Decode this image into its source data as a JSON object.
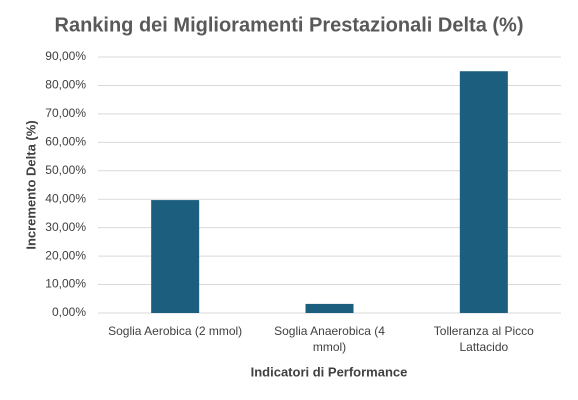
{
  "chart_data": {
    "type": "bar",
    "title": "Ranking dei Miglioramenti Prestazionali Delta (%)",
    "x_label": "Indicatori di Performance",
    "y_label": "Incremento Delta (%)",
    "categories": [
      "Soglia Aerobica (2 mmol)",
      "Soglia Anaerobica (4 mmol)",
      "Tolleranza al Picco Lattacido"
    ],
    "values": [
      39.7,
      3.2,
      85.0
    ],
    "color": "#1b5e7e",
    "ylim": [
      0,
      90
    ],
    "yticks": [
      {
        "value": 0,
        "label": "0,00%"
      },
      {
        "value": 10,
        "label": "10,00%"
      },
      {
        "value": 20,
        "label": "20,00%"
      },
      {
        "value": 30,
        "label": "30,00%"
      },
      {
        "value": 40,
        "label": "40,00%"
      },
      {
        "value": 50,
        "label": "50,00%"
      },
      {
        "value": 60,
        "label": "60,00%"
      },
      {
        "value": 70,
        "label": "70,00%"
      },
      {
        "value": 80,
        "label": "80,00%"
      },
      {
        "value": 90,
        "label": "90,00%"
      }
    ],
    "grid": true
  }
}
